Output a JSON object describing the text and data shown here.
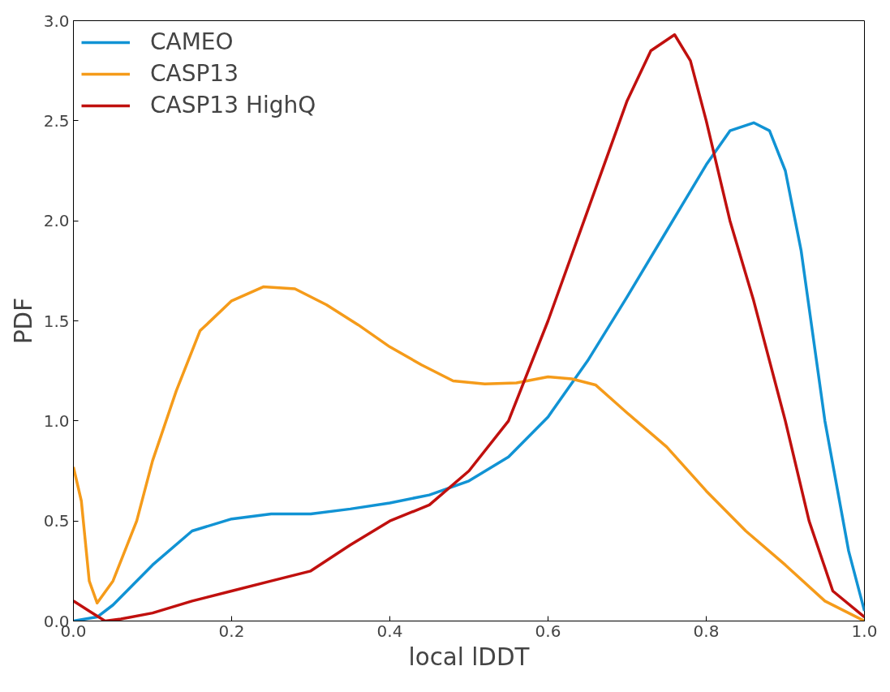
{
  "chart_data": {
    "type": "line",
    "xlabel": "local lDDT",
    "ylabel": "PDF",
    "xlim": [
      0,
      1
    ],
    "ylim": [
      0,
      3
    ],
    "xticks": [
      {
        "value": 0,
        "label": "0.0"
      },
      0.2,
      0.4,
      0.6,
      0.8,
      {
        "value": 1,
        "label": "1.0"
      }
    ],
    "yticks": [
      {
        "value": 0,
        "label": "0.0"
      },
      0.5,
      {
        "value": 1,
        "label": "1.0"
      },
      1.5,
      {
        "value": 2,
        "label": "2.0"
      },
      2.5,
      {
        "value": 3,
        "label": "3.0"
      }
    ],
    "legend": "top left",
    "grid": false,
    "marker": "none",
    "line_style": "solid",
    "series": [
      {
        "name": "CAMEO",
        "color": "#1193d4",
        "x": [
          0,
          0.03,
          0.05,
          0.1,
          0.15,
          0.2,
          0.25,
          0.3,
          0.35,
          0.4,
          0.45,
          0.5,
          0.55,
          0.6,
          0.65,
          0.7,
          0.75,
          0.8,
          0.83,
          0.86,
          0.88,
          0.9,
          0.92,
          0.95,
          0.98,
          1.0
        ],
        "values": [
          0,
          0.02,
          0.08,
          0.28,
          0.45,
          0.51,
          0.535,
          0.535,
          0.56,
          0.59,
          0.63,
          0.7,
          0.82,
          1.02,
          1.3,
          1.62,
          1.95,
          2.28,
          2.45,
          2.49,
          2.45,
          2.25,
          1.85,
          1.0,
          0.35,
          0.05
        ]
      },
      {
        "name": "CASP13",
        "color": "#f59b1a",
        "x": [
          0,
          0.01,
          0.02,
          0.03,
          0.05,
          0.08,
          0.1,
          0.13,
          0.16,
          0.2,
          0.24,
          0.28,
          0.32,
          0.36,
          0.4,
          0.44,
          0.48,
          0.52,
          0.56,
          0.6,
          0.63,
          0.66,
          0.7,
          0.75,
          0.8,
          0.85,
          0.9,
          0.95,
          1.0
        ],
        "values": [
          0.77,
          0.6,
          0.2,
          0.09,
          0.2,
          0.5,
          0.8,
          1.15,
          1.45,
          1.6,
          1.67,
          1.66,
          1.58,
          1.48,
          1.37,
          1.28,
          1.2,
          1.185,
          1.19,
          1.22,
          1.21,
          1.18,
          1.04,
          0.87,
          0.65,
          0.45,
          0.28,
          0.1,
          0
        ]
      },
      {
        "name": "CASP13 HighQ",
        "color": "#c0100e",
        "x": [
          0,
          0.02,
          0.04,
          0.06,
          0.1,
          0.15,
          0.2,
          0.25,
          0.3,
          0.35,
          0.4,
          0.45,
          0.5,
          0.55,
          0.6,
          0.65,
          0.7,
          0.73,
          0.76,
          0.78,
          0.8,
          0.83,
          0.86,
          0.9,
          0.93,
          0.96,
          1.0
        ],
        "values": [
          0.1,
          0.05,
          0,
          0.01,
          0.04,
          0.1,
          0.15,
          0.2,
          0.25,
          0.38,
          0.5,
          0.58,
          0.75,
          1.0,
          1.5,
          2.05,
          2.6,
          2.85,
          2.93,
          2.8,
          2.5,
          2.0,
          1.6,
          1.0,
          0.5,
          0.15,
          0.02
        ]
      }
    ]
  }
}
